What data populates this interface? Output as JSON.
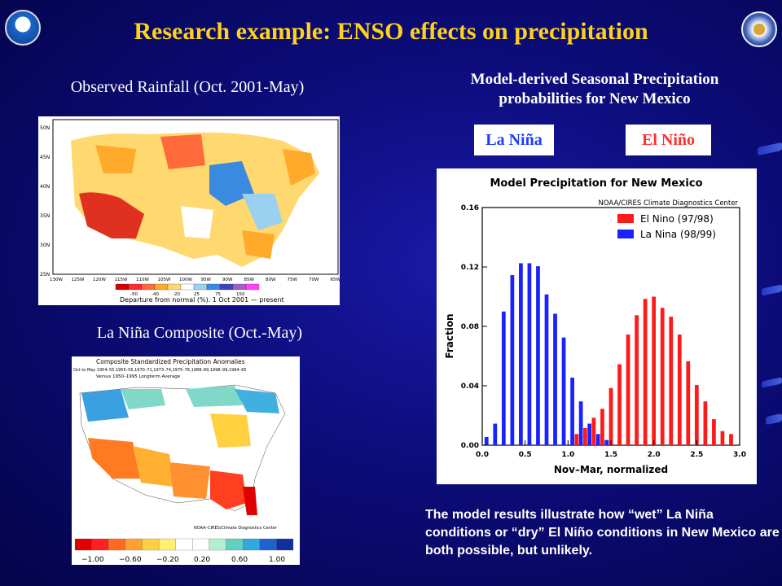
{
  "slide": {
    "title": "Research example: ENSO effects on precipitation",
    "observed_caption": "Observed Rainfall (Oct. 2001-May)",
    "composite_caption": "La Niña Composite (Oct.-May)",
    "model_caption_line1": "Model-derived Seasonal Precipitation",
    "model_caption_line2": "probabilities for New Mexico",
    "tag_lanina": "La Niña",
    "tag_elnino": "El Niño",
    "footnote": "The model results illustrate how “wet” La Niña conditions or “dry” El Niño conditions in New Mexico are both possible, but unlikely."
  },
  "observed_map": {
    "lat_labels": [
      "50N",
      "45N",
      "40N",
      "35N",
      "30N",
      "25N"
    ],
    "lon_labels": [
      "130W",
      "125W",
      "120W",
      "115W",
      "110W",
      "105W",
      "100W",
      "95W",
      "90W",
      "85W",
      "80W",
      "75W",
      "70W",
      "65W"
    ],
    "legend_ticks": [
      "-50",
      "-40",
      "-20",
      "25",
      "75",
      "150"
    ],
    "legend_colors": [
      "#d40000",
      "#ff2a2a",
      "#ff6a3a",
      "#ffaa2a",
      "#ffd870",
      "#ffffff",
      "#9ad0f0",
      "#3a8ae0",
      "#4040c0",
      "#a060c0",
      "#ff40ff"
    ],
    "caption": "Departure from normal (%).   1 Oct 2001 — present"
  },
  "composite_map": {
    "title": "Composite Standardized Precipitation Anomalies",
    "subtitle": "Oct to May  1954–55,1955–56,1970–71,1973–74,1975–76,1988–89,1998–99,1964–65",
    "subtitle2": "Versus 1950–1995 Longterm Average",
    "credit": "NOAA–CIRES/Climate Diagnostics Center",
    "legend_ticks": [
      "−1.00",
      "−0.60",
      "−0.20",
      "0.20",
      "0.60",
      "1.00"
    ],
    "legend_colors": [
      "#e00000",
      "#ff2020",
      "#ff6a20",
      "#ffa030",
      "#ffd040",
      "#fff070",
      "#ffffff",
      "#ffffff",
      "#b0f0d0",
      "#60d0c0",
      "#30a8e0",
      "#2060d0",
      "#1030a0"
    ]
  },
  "chart_data": {
    "type": "bar",
    "title": "Model Precipitation for New Mexico",
    "credit": "NOAA/CIRES Climate Diagnostics Center",
    "xlabel": "Nov–Mar, normalized",
    "ylabel": "Fraction",
    "xlim": [
      0.0,
      3.0
    ],
    "ylim": [
      0.0,
      0.16
    ],
    "xticks": [
      "0.0",
      "0.5",
      "1.0",
      "1.5",
      "2.0",
      "2.5",
      "3.0"
    ],
    "yticks": [
      "0.00",
      "0.04",
      "0.08",
      "0.12",
      "0.16"
    ],
    "legend_position": "top-right",
    "series": [
      {
        "name": "La Nina (98/99)",
        "color": "#1a22ff",
        "x": [
          0.05,
          0.15,
          0.25,
          0.35,
          0.45,
          0.55,
          0.65,
          0.75,
          0.85,
          0.95,
          1.05,
          1.15,
          1.25,
          1.35,
          1.45
        ],
        "values": [
          0.0055,
          0.0145,
          0.09,
          0.1145,
          0.1225,
          0.1225,
          0.1205,
          0.1015,
          0.0885,
          0.0725,
          0.0455,
          0.0295,
          0.0145,
          0.0075,
          0.0035
        ]
      },
      {
        "name": "El Nino (97/98)",
        "color": "#ff1a1a",
        "x": [
          1.1,
          1.2,
          1.3,
          1.4,
          1.5,
          1.6,
          1.7,
          1.8,
          1.9,
          2.0,
          2.1,
          2.2,
          2.3,
          2.4,
          2.5,
          2.6,
          2.7,
          2.8,
          2.9
        ],
        "values": [
          0.0075,
          0.0115,
          0.0185,
          0.0245,
          0.0385,
          0.0545,
          0.0745,
          0.0875,
          0.0985,
          0.1,
          0.0925,
          0.0865,
          0.0745,
          0.0565,
          0.0405,
          0.0295,
          0.0175,
          0.0095,
          0.0075
        ]
      }
    ]
  },
  "decor": {
    "stripe_color": "#3a55e0"
  }
}
